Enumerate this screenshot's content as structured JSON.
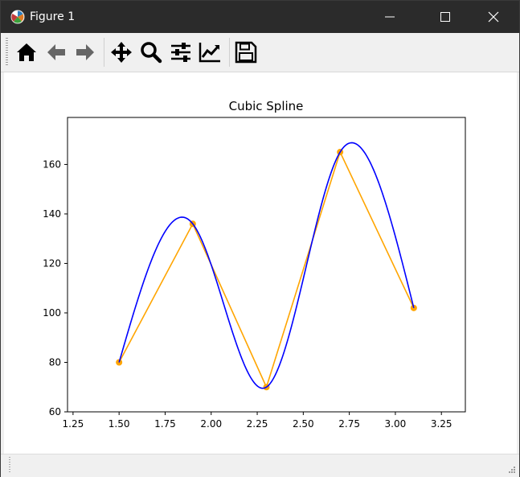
{
  "window": {
    "title": "Figure 1"
  },
  "toolbar": {
    "tools": [
      "home-icon",
      "back-arrow-icon",
      "forward-arrow-icon",
      "pan-icon",
      "zoom-icon",
      "configure-subplots-icon",
      "edit-axis-icon",
      "save-icon"
    ]
  },
  "colors": {
    "spline": "#0000ff",
    "points": "#ffa500",
    "titlebar": "#2b2b2b"
  },
  "chart_data": {
    "type": "line",
    "title": "Cubic Spline",
    "xlabel": "",
    "ylabel": "",
    "xlim": [
      1.22,
      3.38
    ],
    "ylim": [
      60,
      179
    ],
    "xticks": [
      "1.25",
      "1.50",
      "1.75",
      "2.00",
      "2.25",
      "2.50",
      "2.75",
      "3.00",
      "3.25"
    ],
    "yticks": [
      "60",
      "80",
      "100",
      "120",
      "140",
      "160"
    ],
    "grid": false,
    "series": [
      {
        "type": "line",
        "color": "#ffa500",
        "markers": true,
        "x": [
          1.5,
          1.9,
          2.3,
          2.7,
          3.1
        ],
        "y": [
          80,
          136,
          70,
          165,
          102
        ]
      },
      {
        "type": "spline",
        "color": "#0000ff",
        "x": [
          1.5,
          1.9,
          2.3,
          2.7,
          3.1
        ],
        "y": [
          80,
          136,
          70,
          165,
          102
        ]
      }
    ]
  }
}
